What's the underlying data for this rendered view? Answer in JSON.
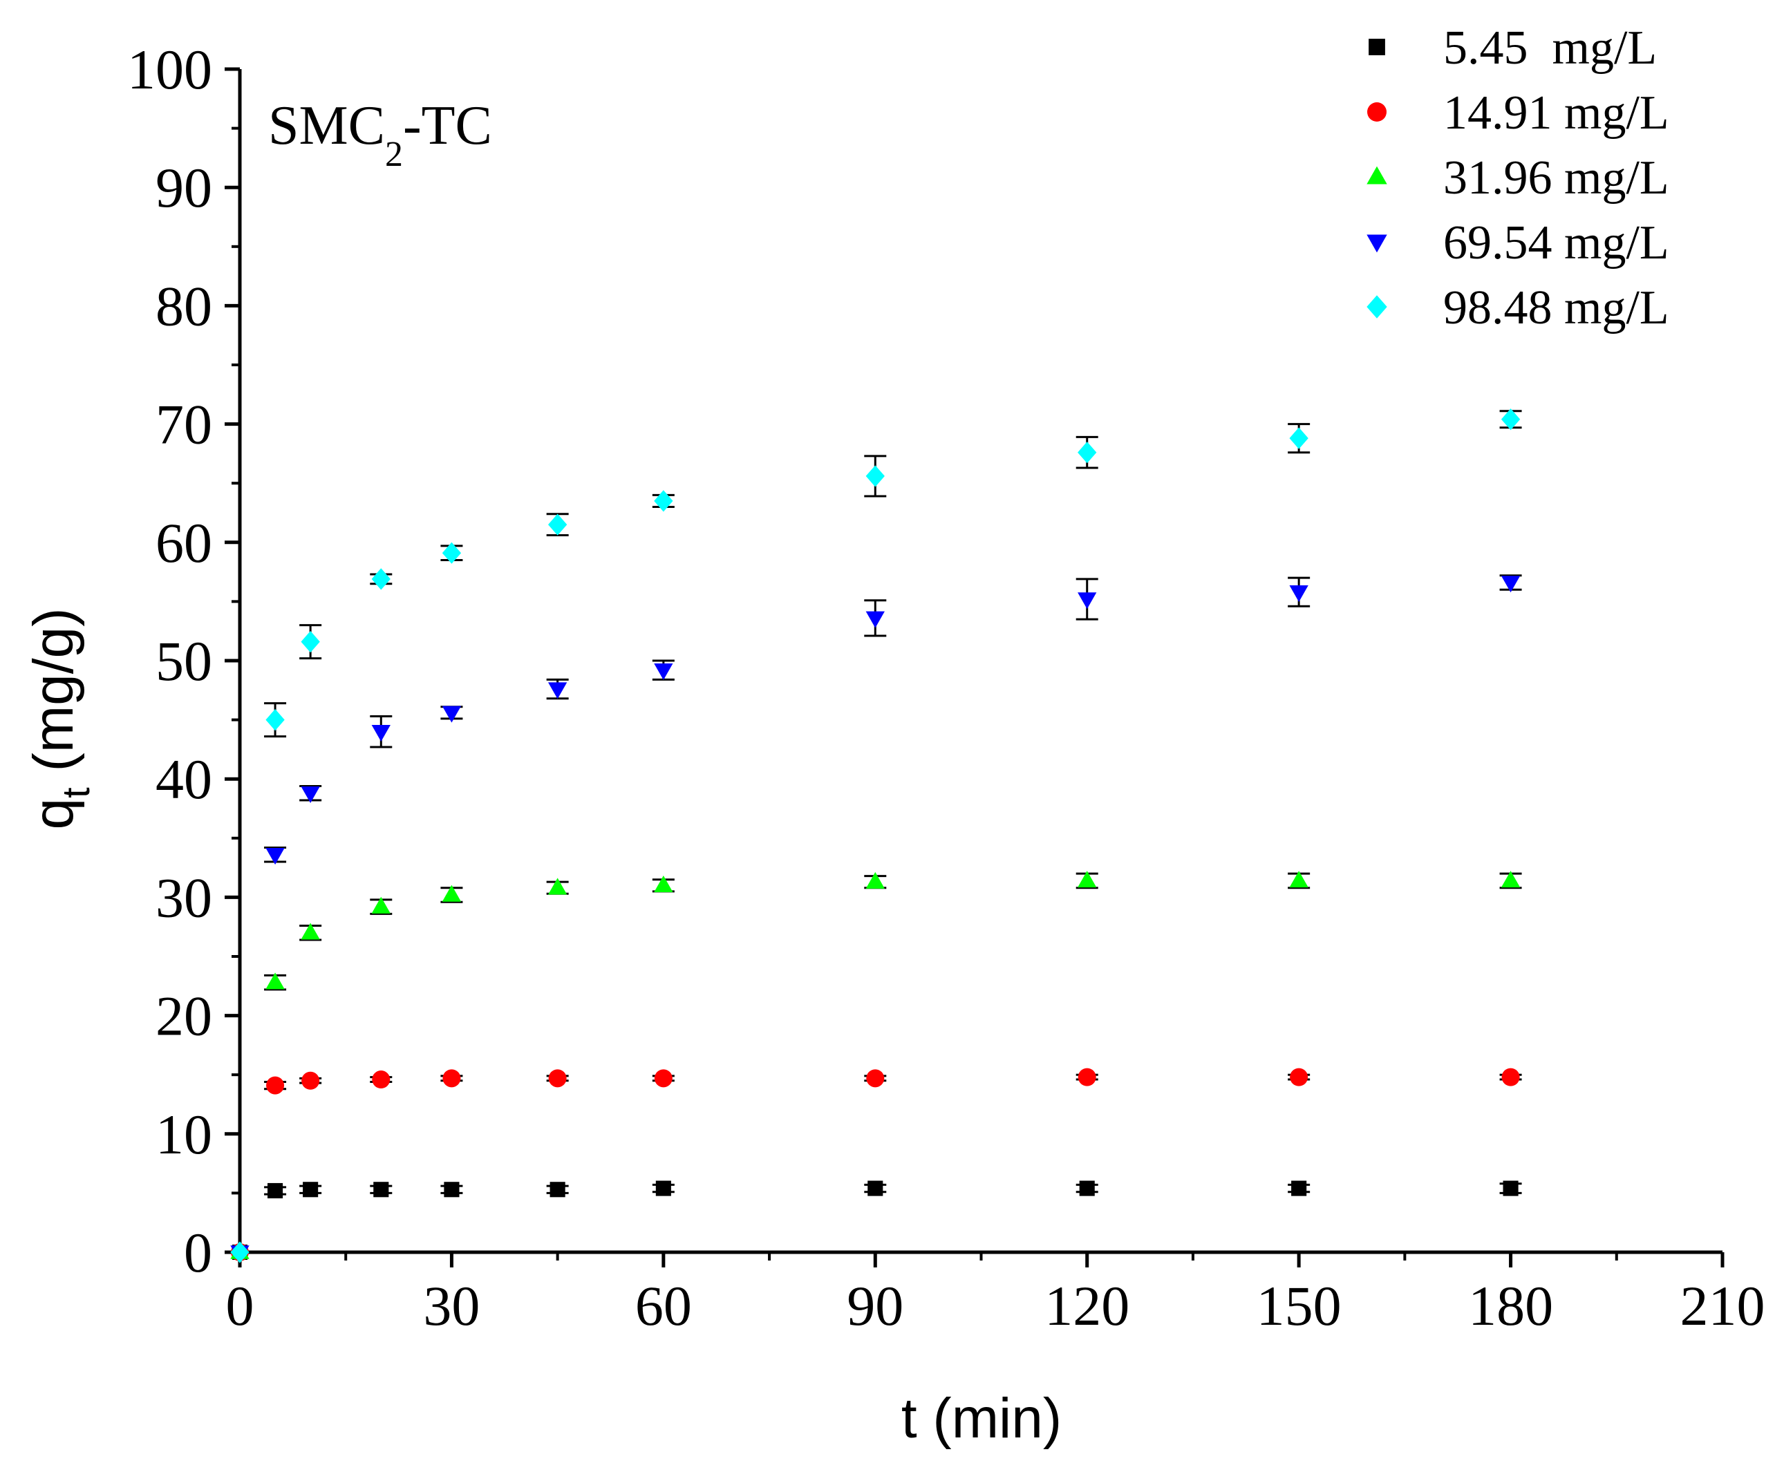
{
  "chart_data": {
    "type": "scatter",
    "title": "",
    "annotation": {
      "main": "SMC",
      "subscript": "2",
      "suffix": "-TC"
    },
    "xlabel": "t (min)",
    "ylabel": {
      "main": "q",
      "subscript": "t",
      "suffix": " (mg/g)"
    },
    "xlim": [
      0,
      210
    ],
    "ylim": [
      0,
      100
    ],
    "xticks": [
      0,
      30,
      60,
      90,
      120,
      150,
      180,
      210
    ],
    "yticks": [
      0,
      10,
      20,
      30,
      40,
      50,
      60,
      70,
      80,
      90,
      100
    ],
    "legend_position": "top-right",
    "series": [
      {
        "name": "5.45  mg/L",
        "color": "#000000",
        "marker": "square",
        "x": [
          0,
          5,
          10,
          20,
          30,
          45,
          60,
          90,
          120,
          150,
          180
        ],
        "y": [
          0,
          5.2,
          5.3,
          5.3,
          5.3,
          5.3,
          5.4,
          5.4,
          5.4,
          5.4,
          5.4
        ],
        "err": [
          0,
          0.3,
          0.3,
          0.3,
          0.3,
          0.3,
          0.3,
          0.3,
          0.3,
          0.3,
          0.4
        ]
      },
      {
        "name": "14.91 mg/L",
        "color": "#ff0000",
        "marker": "circle",
        "x": [
          0,
          5,
          10,
          20,
          30,
          45,
          60,
          90,
          120,
          150,
          180
        ],
        "y": [
          0,
          14.1,
          14.5,
          14.6,
          14.7,
          14.7,
          14.7,
          14.7,
          14.8,
          14.8,
          14.8
        ],
        "err": [
          0,
          0.3,
          0.2,
          0.2,
          0.2,
          0.2,
          0.2,
          0.2,
          0.2,
          0.2,
          0.2
        ]
      },
      {
        "name": "31.96 mg/L",
        "color": "#00ff00",
        "marker": "triangle-up",
        "x": [
          0,
          5,
          10,
          20,
          30,
          45,
          60,
          90,
          120,
          150,
          180
        ],
        "y": [
          0,
          22.8,
          27.0,
          29.2,
          30.2,
          30.8,
          31.0,
          31.3,
          31.4,
          31.4,
          31.4
        ],
        "err": [
          0,
          0.6,
          0.6,
          0.6,
          0.6,
          0.5,
          0.5,
          0.5,
          0.6,
          0.6,
          0.6
        ]
      },
      {
        "name": "69.54 mg/L",
        "color": "#0000ff",
        "marker": "triangle-down",
        "x": [
          0,
          5,
          10,
          20,
          30,
          45,
          60,
          90,
          120,
          150,
          180
        ],
        "y": [
          0,
          33.6,
          38.8,
          44.0,
          45.6,
          47.6,
          49.2,
          53.6,
          55.2,
          55.8,
          56.6
        ],
        "err": [
          0,
          0.6,
          0.6,
          1.3,
          0.5,
          0.8,
          0.8,
          1.5,
          1.7,
          1.2,
          0.6
        ]
      },
      {
        "name": "98.48 mg/L",
        "color": "#00ffff",
        "marker": "diamond",
        "x": [
          0,
          5,
          10,
          20,
          30,
          45,
          60,
          90,
          120,
          150,
          180
        ],
        "y": [
          0,
          45.0,
          51.6,
          56.9,
          59.1,
          61.5,
          63.5,
          65.6,
          67.6,
          68.8,
          70.4
        ],
        "err": [
          0,
          1.4,
          1.4,
          0.4,
          0.6,
          0.9,
          0.5,
          1.7,
          1.3,
          1.2,
          0.7
        ]
      }
    ]
  }
}
